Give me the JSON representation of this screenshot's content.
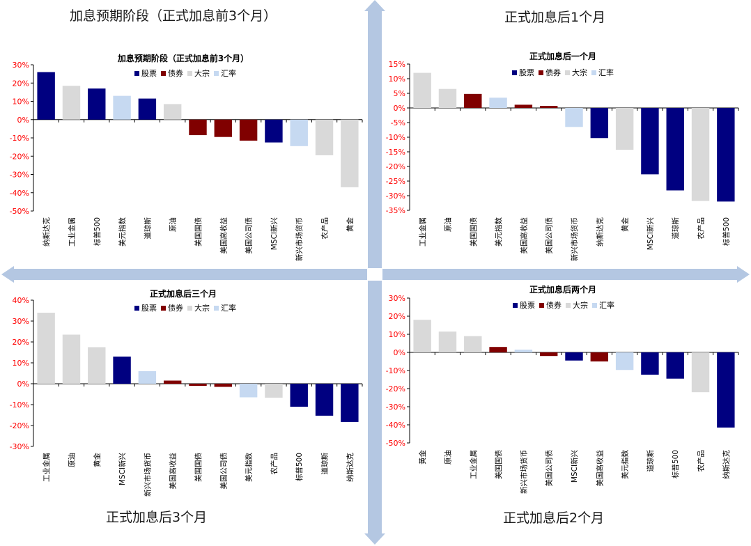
{
  "colors": {
    "stock": "#000080",
    "bond": "#800000",
    "commodity": "#d9d9d9",
    "fx": "#c6d9f1",
    "arrow": "#b4c7e2",
    "axis_label": "#ff0000"
  },
  "quadrant_titles": {
    "top_left": "加息预期阶段（正式加息前3个月）",
    "top_right": "正式加息后1个月",
    "bottom_left": "正式加息后3个月",
    "bottom_right": "正式加息后2个月"
  },
  "legend": {
    "stock": "股票",
    "bond": "债券",
    "commodity": "大宗",
    "fx": "汇率"
  },
  "chart_data": [
    {
      "type": "bar",
      "title": "加息预期阶段（正式加息前3个月）",
      "ylim": [
        -50,
        30
      ],
      "yticks": [
        30,
        20,
        10,
        0,
        -10,
        -20,
        -30,
        -40,
        -50
      ],
      "y_unit": "%",
      "categories": [
        "纳斯达克",
        "工业金属",
        "标普500",
        "美元指数",
        "道琼斯",
        "原油",
        "美国国债",
        "美国高收益",
        "美国公司债",
        "MSCI新兴",
        "新兴市场货币",
        "农产品",
        "黄金"
      ],
      "values": [
        26,
        18.5,
        17,
        13,
        11.5,
        8.5,
        -8.5,
        -9.5,
        -11.5,
        -12.5,
        -14.5,
        -19.5,
        -37
      ],
      "classes": [
        "stock",
        "commodity",
        "stock",
        "fx",
        "stock",
        "commodity",
        "bond",
        "bond",
        "bond",
        "stock",
        "fx",
        "commodity",
        "commodity"
      ],
      "grid": false,
      "legend_position": "top-right"
    },
    {
      "type": "bar",
      "title": "正式加息后一个月",
      "ylim": [
        -35,
        15
      ],
      "yticks": [
        15,
        10,
        5,
        0,
        -5,
        -10,
        -15,
        -20,
        -25,
        -30,
        -35
      ],
      "y_unit": "%",
      "categories": [
        "工业金属",
        "原油",
        "美国国债",
        "美元指数",
        "美国高收益",
        "美国公司债",
        "新兴市场货币",
        "纳斯达克",
        "黄金",
        "MSCI新兴",
        "道琼斯",
        "农产品",
        "标普500"
      ],
      "values": [
        12,
        6.5,
        4.8,
        3.5,
        1.1,
        0.7,
        -6.5,
        -10.3,
        -14.3,
        -22.7,
        -28.2,
        -31.8,
        -32
      ],
      "classes": [
        "commodity",
        "commodity",
        "bond",
        "fx",
        "bond",
        "bond",
        "fx",
        "stock",
        "commodity",
        "stock",
        "stock",
        "commodity",
        "stock"
      ],
      "grid": false,
      "legend_position": "top-right"
    },
    {
      "type": "bar",
      "title": "正式加息后三个月",
      "ylim": [
        -30,
        40
      ],
      "yticks": [
        40,
        30,
        20,
        10,
        0,
        -10,
        -20,
        -30
      ],
      "y_unit": "%",
      "categories": [
        "工业金属",
        "原油",
        "黄金",
        "MSCI新兴",
        "新兴市场货币",
        "美国高收益",
        "美国国债",
        "美国公司债",
        "美元指数",
        "农产品",
        "标普500",
        "道琼斯",
        "纳斯达克"
      ],
      "values": [
        34,
        23.5,
        17.5,
        13,
        6,
        1.5,
        -1,
        -1.5,
        -6.5,
        -6.7,
        -11,
        -15.3,
        -18.3
      ],
      "classes": [
        "commodity",
        "commodity",
        "commodity",
        "stock",
        "fx",
        "bond",
        "bond",
        "bond",
        "fx",
        "commodity",
        "stock",
        "stock",
        "stock"
      ],
      "grid": false,
      "legend_position": "top-right"
    },
    {
      "type": "bar",
      "title": "正式加息后两个月",
      "ylim": [
        -50,
        30
      ],
      "yticks": [
        30,
        20,
        10,
        0,
        -10,
        -20,
        -30,
        -40,
        -50
      ],
      "y_unit": "%",
      "categories": [
        "黄金",
        "原油",
        "工业金属",
        "美国国债",
        "新兴市场货币",
        "美国公司债",
        "MSCI新兴",
        "美国高收益",
        "美元指数",
        "道琼斯",
        "标普500",
        "农产品",
        "纳斯达克"
      ],
      "values": [
        18,
        11.5,
        9,
        3,
        1.5,
        -2,
        -4.5,
        -5,
        -9.7,
        -12.3,
        -14.5,
        -22,
        -41.5
      ],
      "classes": [
        "commodity",
        "commodity",
        "commodity",
        "bond",
        "fx",
        "bond",
        "stock",
        "bond",
        "fx",
        "stock",
        "stock",
        "commodity",
        "stock"
      ],
      "grid": false,
      "legend_position": "top-right"
    }
  ]
}
